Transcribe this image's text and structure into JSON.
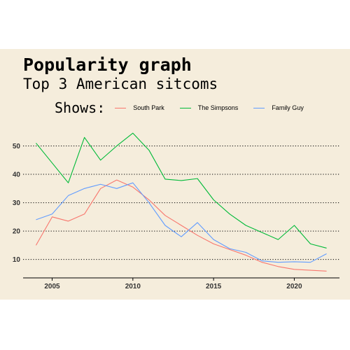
{
  "chart_data": {
    "type": "line",
    "title": "Popularity graph",
    "subtitle": "Top 3 American sitcoms",
    "legend_title": "Shows:",
    "legend_position": "top",
    "x": [
      2004,
      2005,
      2006,
      2007,
      2008,
      2009,
      2010,
      2011,
      2012,
      2013,
      2014,
      2015,
      2016,
      2017,
      2018,
      2019,
      2020,
      2021,
      2022
    ],
    "series": [
      {
        "name": "South Park",
        "color": "#f8766d",
        "values": [
          15,
          25,
          23.5,
          26,
          35,
          38,
          35.5,
          31,
          25.5,
          22,
          18.5,
          15.5,
          13.5,
          11.5,
          9,
          7.5,
          6.5,
          6.2,
          5.9
        ]
      },
      {
        "name": "The Simpsons",
        "color": "#00ba38",
        "values": [
          51,
          44,
          37,
          53,
          45,
          50,
          54.5,
          48.5,
          38.3,
          37.8,
          38.5,
          31,
          26,
          22,
          19.5,
          17,
          22,
          15.5,
          14
        ]
      },
      {
        "name": "Family Guy",
        "color": "#619cff",
        "values": [
          24,
          26,
          32.5,
          35,
          36.5,
          35,
          37,
          30,
          22,
          18,
          23,
          17,
          13.8,
          12.5,
          9.5,
          9,
          9.2,
          9,
          12
        ]
      }
    ],
    "x_ticks": [
      2005,
      2010,
      2015,
      2020
    ],
    "y_ticks": [
      10,
      20,
      30,
      40,
      50
    ],
    "xlim": [
      2003.2,
      2022.8
    ],
    "ylim": [
      3.5,
      59
    ],
    "grid": "horizontal dotted"
  }
}
